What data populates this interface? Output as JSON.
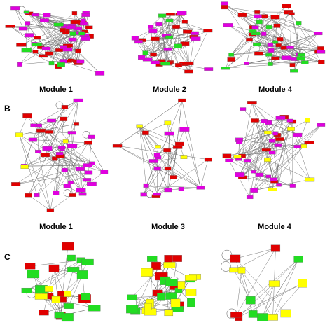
{
  "panels": [
    {
      "letter": "",
      "modules": [
        {
          "title": "Module 1",
          "node_counts": {
            "red": 26,
            "magenta": 28,
            "green": 8,
            "yellow": 0
          },
          "self_loops": 2
        },
        {
          "title": "Module 2",
          "node_counts": {
            "red": 20,
            "magenta": 14,
            "green": 6,
            "yellow": 0
          },
          "self_loops": 2
        },
        {
          "title": "Module 4",
          "node_counts": {
            "red": 22,
            "magenta": 14,
            "green": 16,
            "yellow": 0
          },
          "self_loops": 3
        }
      ]
    },
    {
      "letter": "B",
      "modules": [
        {
          "title": "Module 1",
          "node_counts": {
            "red": 14,
            "magenta": 28,
            "green": 0,
            "yellow": 3
          },
          "self_loops": 3
        },
        {
          "title": "Module 3",
          "node_counts": {
            "red": 10,
            "magenta": 12,
            "green": 0,
            "yellow": 4
          },
          "self_loops": 2
        },
        {
          "title": "Module 4",
          "node_counts": {
            "red": 12,
            "magenta": 26,
            "green": 0,
            "yellow": 8
          },
          "self_loops": 0
        }
      ]
    },
    {
      "letter": "C",
      "modules": [
        {
          "title": "",
          "node_counts": {
            "red": 9,
            "magenta": 0,
            "green": 14,
            "yellow": 4
          },
          "self_loops": 3
        },
        {
          "title": "",
          "node_counts": {
            "red": 7,
            "magenta": 0,
            "green": 12,
            "yellow": 12
          },
          "self_loops": 2
        },
        {
          "title": "",
          "node_counts": {
            "red": 4,
            "magenta": 0,
            "green": 4,
            "yellow": 6
          },
          "self_loops": 3
        }
      ]
    }
  ],
  "colors": {
    "red": "#e00000",
    "magenta": "#e000e0",
    "green": "#22dd22",
    "yellow": "#ffff00",
    "edge": "#777777",
    "background": "#ffffff"
  }
}
